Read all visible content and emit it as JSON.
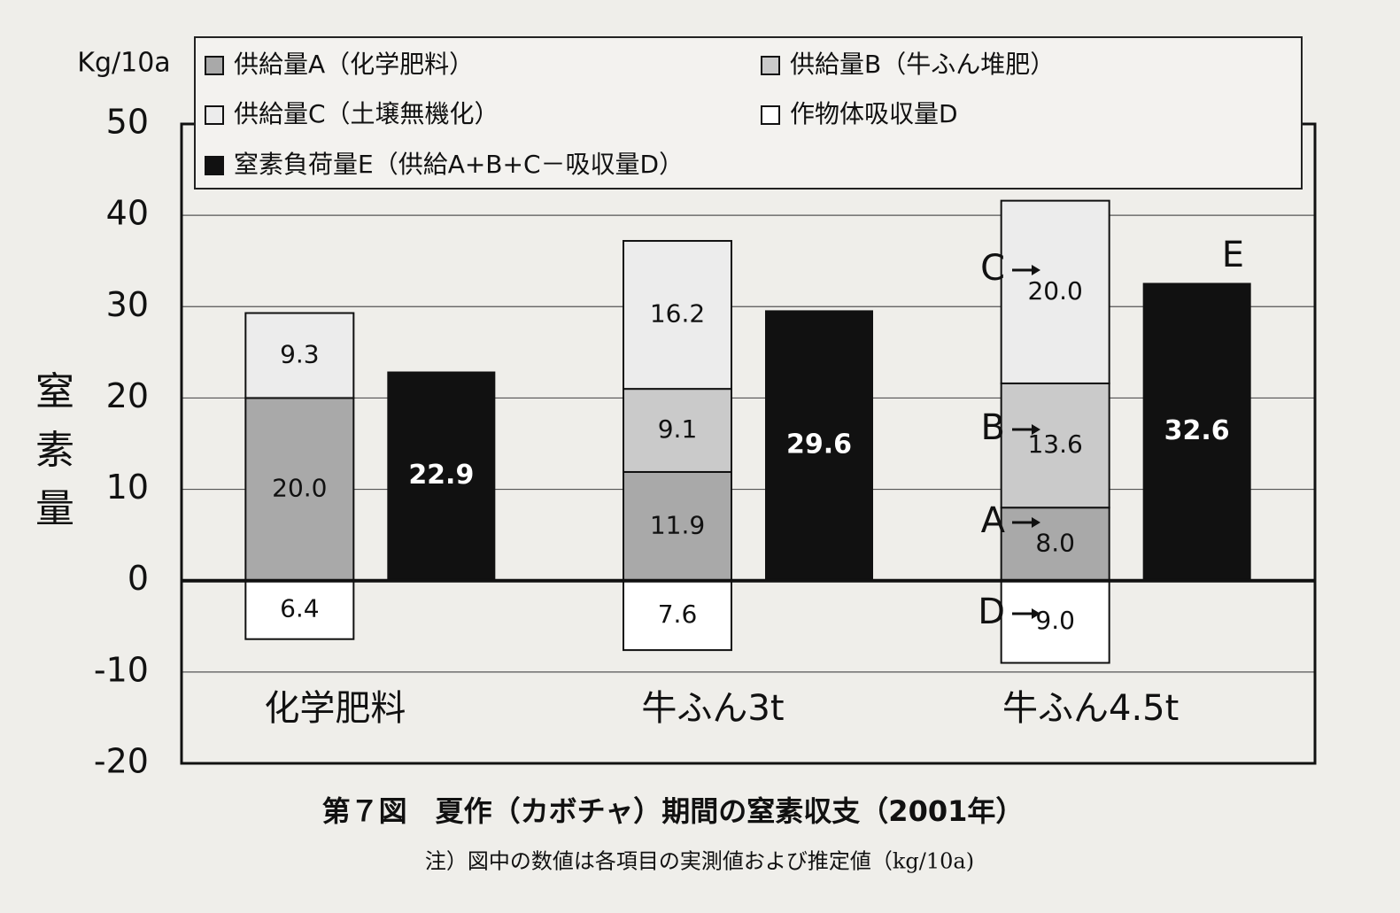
{
  "chart_data": {
    "type": "bar",
    "title": "第７図　夏作（カボチャ）期間の窒素収支（2001年）",
    "subtitle": "注）図中の数値は各項目の実測値および推定値（kg/10a)",
    "y_label": "窒素量",
    "y_unit": "Kg/10a",
    "categories": [
      "化学肥料",
      "牛ふん3t",
      "牛ふん4.5t"
    ],
    "series": [
      {
        "name": "供給量A（化学肥料）",
        "color": "#a9a9a9",
        "values": [
          20.0,
          11.9,
          8.0
        ],
        "value_labels": [
          "20.0",
          "11.9",
          "8.0"
        ]
      },
      {
        "name": "供給量B（牛ふん堆肥）",
        "color": "#cacaca",
        "values": [
          null,
          9.1,
          13.6
        ],
        "value_labels": [
          null,
          "9.1",
          "13.6"
        ]
      },
      {
        "name": "供給量C（土壌無機化）",
        "color": "#ececec",
        "values": [
          9.3,
          16.2,
          20.0
        ],
        "value_labels": [
          "9.3",
          "16.2",
          "20.0"
        ]
      },
      {
        "name": "作物体吸収量D",
        "color": "#ffffff",
        "values": [
          -6.4,
          -7.6,
          -9.0
        ],
        "value_labels": [
          "6.4",
          "7.6",
          "9.0"
        ]
      },
      {
        "name": "窒素負荷量E（供給A+B+C－吸収量D）",
        "color": "#111111",
        "values": [
          22.9,
          29.6,
          32.6
        ]
      }
    ],
    "annotations": [
      "C",
      "B",
      "A",
      "D",
      "E"
    ],
    "ylim": [
      -20,
      50
    ],
    "yticks": [
      -20,
      -10,
      0,
      10,
      20,
      30,
      40,
      50
    ],
    "grid": true
  }
}
